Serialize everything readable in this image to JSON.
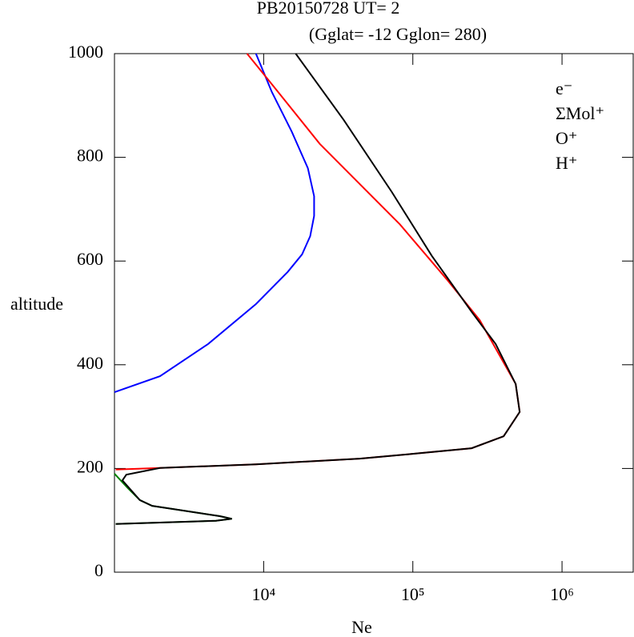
{
  "chart_data": {
    "type": "line",
    "title": "PB20150728   UT=  2",
    "subtitle": "(Gglat= -12   Gglon=  280)",
    "xlabel": "Ne",
    "ylabel": "altitude",
    "xscale": "log",
    "xlim": [
      1000,
      3000000
    ],
    "ylim": [
      0,
      1000
    ],
    "xticks": [
      {
        "value": 10000,
        "label": "10⁴"
      },
      {
        "value": 100000,
        "label": "10⁵"
      },
      {
        "value": 1000000,
        "label": "10⁶"
      }
    ],
    "yticks": [
      0,
      200,
      400,
      600,
      800,
      1000
    ],
    "legend": "upper right",
    "series": [
      {
        "name": "H⁺",
        "color": "#0000ff",
        "x": [
          8870,
          11350,
          15450,
          19800,
          21800,
          21800,
          20500,
          18100,
          14500,
          8870,
          4240,
          2020,
          1000
        ],
        "values": [
          1000,
          926,
          849,
          779,
          725,
          687,
          648,
          613,
          579,
          517,
          440,
          378,
          347
        ]
      },
      {
        "name": "O⁺",
        "color": "#ff0000",
        "x": [
          7740,
          11350,
          23800,
          81700,
          171000,
          281000,
          489000,
          520000,
          406000,
          248000,
          98000,
          44100,
          8870,
          2020,
          1020
        ],
        "values": [
          1000,
          941,
          826,
          671,
          563,
          486,
          363,
          309,
          262,
          239,
          228,
          219,
          208,
          201,
          198
        ]
      },
      {
        "name": "ΣMol⁺",
        "color": "#008000",
        "x": [
          1000,
          1230,
          1480,
          1790,
          5090,
          6120,
          4790,
          1020
        ],
        "values": [
          190,
          162,
          139,
          128,
          108,
          103,
          99,
          93
        ]
      },
      {
        "name": "e⁻",
        "color": "#000000",
        "x": [
          16400,
          34400,
          72300,
          134000,
          248000,
          359000,
          489000,
          520000,
          406000,
          248000,
          98000,
          44100,
          8870,
          2020,
          1200,
          1130,
          1480,
          1790,
          5090,
          6120,
          4790,
          1020
        ],
        "values": [
          1000,
          872,
          733,
          610,
          502,
          440,
          363,
          309,
          262,
          239,
          228,
          219,
          208,
          201,
          188,
          177,
          139,
          128,
          108,
          103,
          99,
          93
        ]
      }
    ]
  }
}
